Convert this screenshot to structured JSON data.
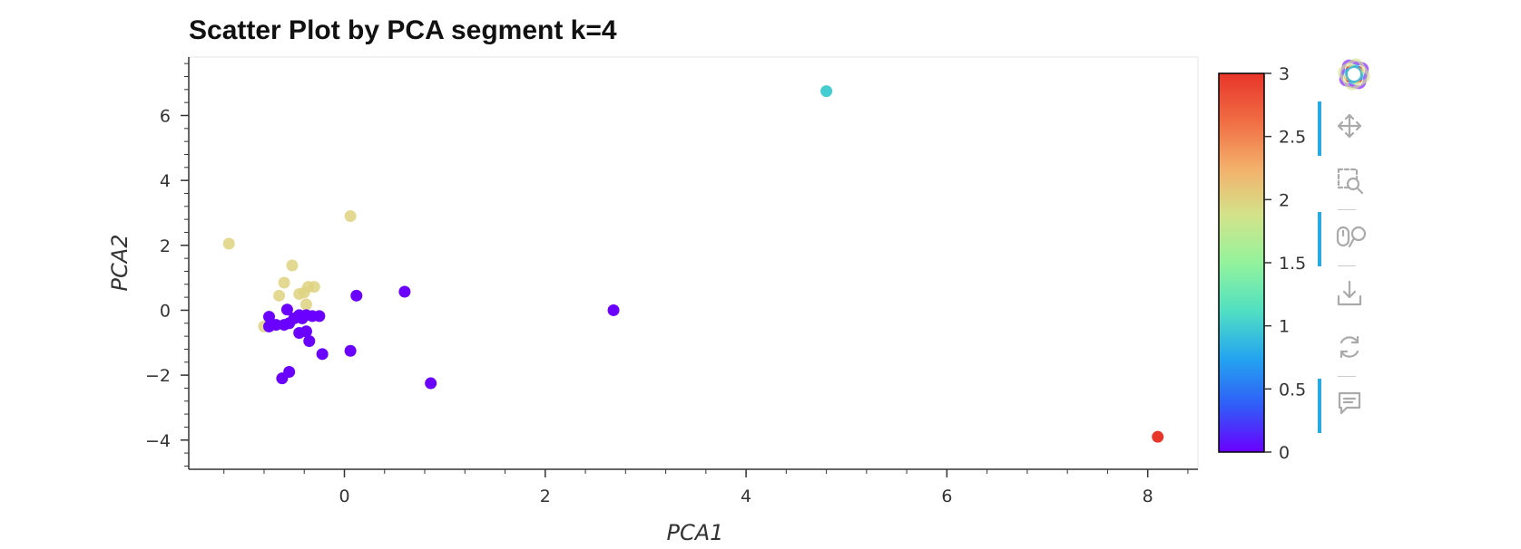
{
  "chart_data": {
    "type": "scatter",
    "title": "Scatter Plot by PCA segment k=4",
    "xlabel": "PCA1",
    "ylabel": "PCA2",
    "xlim": [
      -1.55,
      8.5
    ],
    "ylim": [
      -4.9,
      7.8
    ],
    "x_ticks": [
      0,
      2,
      4,
      6,
      8
    ],
    "x_tick_labels": [
      "0",
      "2",
      "4",
      "6",
      "8"
    ],
    "y_ticks": [
      -4,
      -2,
      0,
      2,
      4,
      6
    ],
    "y_tick_labels": [
      "−4",
      "−2",
      "0",
      "2",
      "4",
      "6"
    ],
    "grid": false,
    "color_field": "segment",
    "color_map": "rainbow",
    "colorbar": {
      "range": [
        0,
        3
      ],
      "ticks": [
        0,
        0.5,
        1,
        1.5,
        2,
        2.5,
        3
      ],
      "tick_labels": [
        "0",
        "0.5",
        "1",
        "1.5",
        "2",
        "2.5",
        "3"
      ],
      "position": "right"
    },
    "points": [
      {
        "x": 4.8,
        "y": 6.75,
        "c": 1
      },
      {
        "x": 8.1,
        "y": -3.9,
        "c": 3
      },
      {
        "x": -1.15,
        "y": 2.05,
        "c": 2
      },
      {
        "x": 0.06,
        "y": 2.9,
        "c": 2
      },
      {
        "x": -0.52,
        "y": 1.38,
        "c": 2
      },
      {
        "x": -0.6,
        "y": 0.85,
        "c": 2
      },
      {
        "x": -0.3,
        "y": 0.72,
        "c": 2
      },
      {
        "x": -0.36,
        "y": 0.72,
        "c": 2
      },
      {
        "x": -0.65,
        "y": 0.45,
        "c": 2
      },
      {
        "x": -0.45,
        "y": 0.5,
        "c": 2
      },
      {
        "x": -0.4,
        "y": 0.55,
        "c": 2
      },
      {
        "x": -0.38,
        "y": 0.18,
        "c": 2
      },
      {
        "x": -0.8,
        "y": -0.5,
        "c": 2
      },
      {
        "x": 2.68,
        "y": 0.0,
        "c": 0
      },
      {
        "x": 0.6,
        "y": 0.57,
        "c": 0
      },
      {
        "x": 0.12,
        "y": 0.45,
        "c": 0
      },
      {
        "x": -0.75,
        "y": -0.2,
        "c": 0
      },
      {
        "x": -0.75,
        "y": -0.5,
        "c": 0
      },
      {
        "x": -0.68,
        "y": -0.45,
        "c": 0
      },
      {
        "x": -0.6,
        "y": -0.45,
        "c": 0
      },
      {
        "x": -0.57,
        "y": 0.02,
        "c": 0
      },
      {
        "x": -0.55,
        "y": -0.4,
        "c": 0
      },
      {
        "x": -0.5,
        "y": -0.25,
        "c": 0
      },
      {
        "x": -0.45,
        "y": -0.15,
        "c": 0
      },
      {
        "x": -0.42,
        "y": -0.25,
        "c": 0
      },
      {
        "x": -0.38,
        "y": -0.15,
        "c": 0
      },
      {
        "x": -0.32,
        "y": -0.18,
        "c": 0
      },
      {
        "x": -0.25,
        "y": -0.18,
        "c": 0
      },
      {
        "x": -0.45,
        "y": -0.7,
        "c": 0
      },
      {
        "x": -0.38,
        "y": -0.65,
        "c": 0
      },
      {
        "x": -0.35,
        "y": -0.95,
        "c": 0
      },
      {
        "x": -0.22,
        "y": -1.35,
        "c": 0
      },
      {
        "x": 0.06,
        "y": -1.25,
        "c": 0
      },
      {
        "x": -0.55,
        "y": -1.9,
        "c": 0
      },
      {
        "x": -0.62,
        "y": -2.1,
        "c": 0
      },
      {
        "x": 0.86,
        "y": -2.25,
        "c": 0
      }
    ]
  },
  "colors": {
    "rainbow_stops": [
      "#6a00ff",
      "#2f5ef7",
      "#24a6ef",
      "#52e0c2",
      "#93f39c",
      "#d3e38a",
      "#f4b06b",
      "#f06c43",
      "#e8352a"
    ],
    "axis": "#333333",
    "toolbar_icon": "#aaaaaa",
    "toolbar_active": "#26aae1"
  },
  "toolbar": {
    "tools": [
      {
        "name": "bokeh-logo-icon",
        "active": false
      },
      {
        "name": "pan-icon",
        "active": true
      },
      {
        "name": "box-zoom-icon",
        "active": false
      },
      {
        "name": "wheel-zoom-icon",
        "active": true
      },
      {
        "name": "save-icon",
        "active": false
      },
      {
        "name": "reset-icon",
        "active": false
      },
      {
        "name": "hover-icon",
        "active": true
      }
    ]
  }
}
